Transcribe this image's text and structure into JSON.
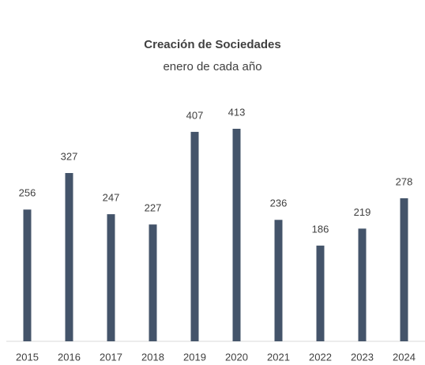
{
  "chart_data": {
    "type": "bar",
    "title": "Creación de Sociedades",
    "subtitle": "enero de cada año",
    "categories": [
      "2015",
      "2016",
      "2017",
      "2018",
      "2019",
      "2020",
      "2021",
      "2022",
      "2023",
      "2024"
    ],
    "values": [
      256,
      327,
      247,
      227,
      407,
      413,
      236,
      186,
      219,
      278
    ],
    "color": "#44546a"
  }
}
